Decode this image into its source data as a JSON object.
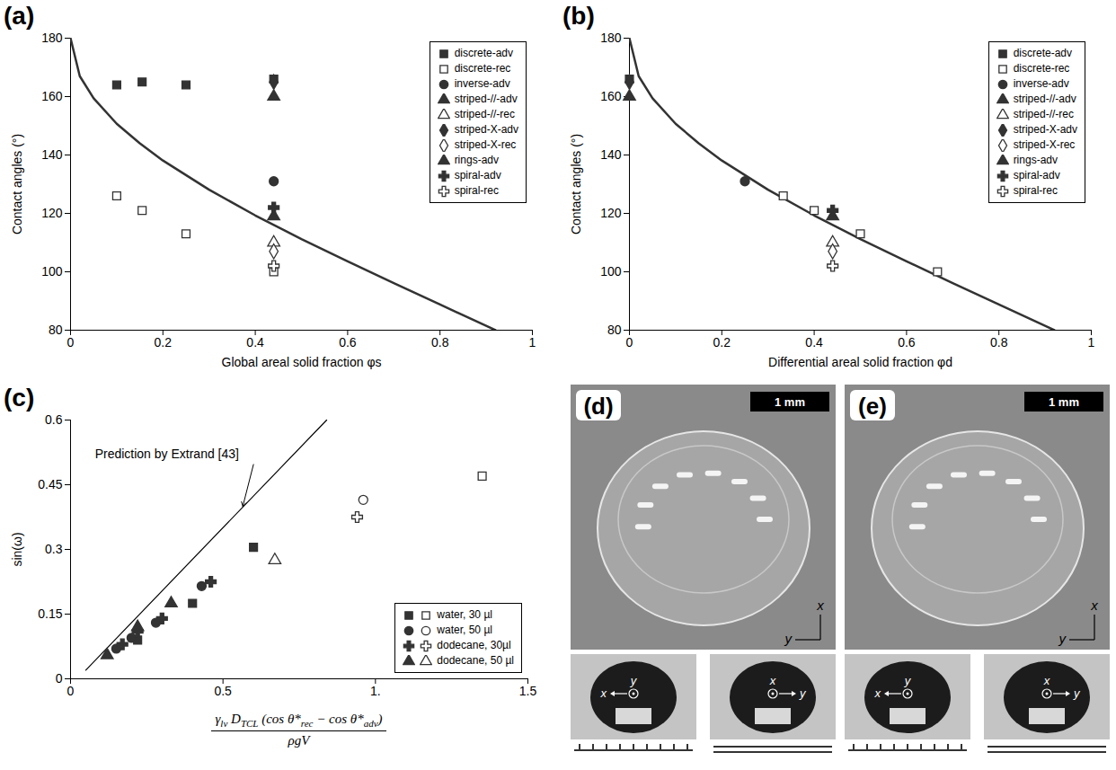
{
  "chart_data": [
    {
      "type": "scatter",
      "label": "(a)",
      "xlabel": "Global areal solid fraction φs",
      "ylabel": "Contact angles (°)",
      "xlim": [
        0,
        1
      ],
      "xticks": [
        0,
        0.2,
        0.4,
        0.6,
        0.8,
        1
      ],
      "ylim": [
        80,
        180
      ],
      "yticks": [
        80,
        100,
        120,
        140,
        160,
        180
      ],
      "legend": "top-right",
      "curve": {
        "color": "#333333",
        "x": [
          0,
          0.02,
          0.05,
          0.1,
          0.15,
          0.2,
          0.3,
          0.4,
          0.5,
          0.6,
          0.7,
          0.8,
          0.9,
          0.92
        ],
        "values": [
          180,
          167,
          159.4,
          150.7,
          144,
          138.1,
          128.1,
          119.3,
          111.2,
          103.6,
          96.1,
          88.8,
          81.5,
          80
        ]
      },
      "series": [
        {
          "name": "discrete-adv",
          "marker": "filled-square",
          "color": "#333333",
          "x": [
            0.1,
            0.155,
            0.25,
            0.44
          ],
          "values": [
            164,
            165,
            164,
            166
          ]
        },
        {
          "name": "discrete-rec",
          "marker": "open-square",
          "color": "#333333",
          "x": [
            0.1,
            0.155,
            0.25,
            0.44
          ],
          "values": [
            126,
            121,
            113,
            100
          ]
        },
        {
          "name": "inverse-adv",
          "marker": "filled-circle",
          "color": "#333333",
          "x": [
            0.44
          ],
          "values": [
            131
          ]
        },
        {
          "name": "striped-//-adv",
          "marker": "filled-triangle",
          "color": "#333333",
          "x": [
            0.44
          ],
          "values": [
            119
          ]
        },
        {
          "name": "striped-//-rec",
          "marker": "open-triangle",
          "color": "#333333",
          "x": [
            0.44
          ],
          "values": [
            110
          ]
        },
        {
          "name": "striped-X-adv",
          "marker": "filled-diamond",
          "color": "#333333",
          "x": [
            0.44
          ],
          "values": [
            165
          ]
        },
        {
          "name": "striped-X-rec",
          "marker": "open-diamond",
          "color": "#333333",
          "x": [
            0.44
          ],
          "values": [
            107
          ]
        },
        {
          "name": "rings-adv",
          "marker": "filled-triangle",
          "color": "#333333",
          "x": [
            0.44
          ],
          "values": [
            160
          ]
        },
        {
          "name": "spiral-adv",
          "marker": "filled-cross",
          "color": "#333333",
          "x": [
            0.44
          ],
          "values": [
            122
          ]
        },
        {
          "name": "spiral-rec",
          "marker": "open-cross",
          "color": "#333333",
          "x": [
            0.44
          ],
          "values": [
            102
          ]
        }
      ]
    },
    {
      "type": "scatter",
      "label": "(b)",
      "xlabel": "Differential areal solid fraction φd",
      "ylabel": "Contact angles (°)",
      "xlim": [
        0,
        1
      ],
      "xticks": [
        0,
        0.2,
        0.4,
        0.6,
        0.8,
        1
      ],
      "ylim": [
        80,
        180
      ],
      "yticks": [
        80,
        100,
        120,
        140,
        160,
        180
      ],
      "legend": "top-right",
      "curve": {
        "color": "#333333",
        "x": [
          0,
          0.02,
          0.05,
          0.1,
          0.15,
          0.2,
          0.3,
          0.4,
          0.5,
          0.6,
          0.7,
          0.8,
          0.9,
          0.92
        ],
        "values": [
          180,
          167,
          159.4,
          150.7,
          144,
          138.1,
          128.1,
          119.3,
          111.2,
          103.6,
          96.1,
          88.8,
          81.5,
          80
        ]
      },
      "series": [
        {
          "name": "discrete-adv",
          "marker": "filled-square",
          "color": "#333333",
          "x": [
            0
          ],
          "values": [
            166
          ]
        },
        {
          "name": "discrete-rec",
          "marker": "open-square",
          "color": "#333333",
          "x": [
            0.333,
            0.4,
            0.5,
            0.667
          ],
          "values": [
            126,
            121,
            113,
            100
          ]
        },
        {
          "name": "inverse-adv",
          "marker": "filled-circle",
          "color": "#333333",
          "x": [
            0.25
          ],
          "values": [
            131
          ]
        },
        {
          "name": "striped-//-adv",
          "marker": "filled-triangle",
          "color": "#333333",
          "x": [
            0.44
          ],
          "values": [
            119
          ]
        },
        {
          "name": "striped-//-rec",
          "marker": "open-triangle",
          "color": "#333333",
          "x": [
            0.44
          ],
          "values": [
            110
          ]
        },
        {
          "name": "striped-X-adv",
          "marker": "filled-diamond",
          "color": "#333333",
          "x": [
            0
          ],
          "values": [
            165
          ]
        },
        {
          "name": "striped-X-rec",
          "marker": "open-diamond",
          "color": "#333333",
          "x": [
            0.44
          ],
          "values": [
            107
          ]
        },
        {
          "name": "rings-adv",
          "marker": "filled-triangle",
          "color": "#333333",
          "x": [
            0
          ],
          "values": [
            160
          ]
        },
        {
          "name": "spiral-adv",
          "marker": "filled-cross",
          "color": "#333333",
          "x": [
            0.44
          ],
          "values": [
            121
          ]
        },
        {
          "name": "spiral-rec",
          "marker": "open-cross",
          "color": "#333333",
          "x": [
            0.44
          ],
          "values": [
            102
          ]
        }
      ]
    },
    {
      "type": "scatter",
      "label": "(c)",
      "xlabel": {
        "numerator": [
          [
            "γ",
            "lv"
          ],
          [
            " D",
            "TCL"
          ],
          [
            " (cos θ*",
            "rec"
          ],
          [
            " − cos θ*",
            "adv"
          ],
          [
            ")",
            ""
          ]
        ],
        "denominator": "ρgV"
      },
      "ylabel": "sin(ω)",
      "xlim": [
        0,
        1.5
      ],
      "xticks": [
        0,
        0.5,
        {
          "value": 1,
          "label": "1."
        },
        1.5
      ],
      "ylim": [
        0,
        0.6
      ],
      "yticks": [
        0,
        0.15,
        0.3,
        0.45,
        0.6
      ],
      "legend": "bottom-right",
      "reference": {
        "color": "#000000",
        "x": [
          0.05,
          0.84
        ],
        "values": [
          0.02,
          0.6
        ]
      },
      "annotation": {
        "text": "Prediction by Extrand [43]",
        "x": 0.08,
        "y": 0.52,
        "arrow_from": [
          0.6,
          0.497
        ],
        "arrow_to": [
          0.565,
          0.4
        ]
      },
      "series": [
        {
          "name": "water, 30 µl",
          "marker": "square",
          "color": "#333333",
          "x": [
            0.22,
            0.4,
            0.6
          ],
          "values": [
            0.09,
            0.175,
            0.305
          ],
          "open_x": [
            1.35
          ],
          "open_values": [
            0.47
          ]
        },
        {
          "name": "water, 50 µl",
          "marker": "circle",
          "color": "#333333",
          "x": [
            0.15,
            0.2,
            0.28,
            0.43
          ],
          "values": [
            0.07,
            0.095,
            0.13,
            0.215
          ],
          "open_x": [
            0.96
          ],
          "open_values": [
            0.415
          ]
        },
        {
          "name": "dodecane, 30µl",
          "marker": "cross",
          "color": "#333333",
          "x": [
            0.17,
            0.22,
            0.3,
            0.46
          ],
          "values": [
            0.08,
            0.11,
            0.14,
            0.225
          ],
          "open_x": [
            0.94
          ],
          "open_values": [
            0.375
          ]
        },
        {
          "name": "dodecane, 50 µl",
          "marker": "triangle",
          "color": "#333333",
          "x": [
            0.12,
            0.22,
            0.33
          ],
          "values": [
            0.055,
            0.12,
            0.175
          ],
          "open_x": [
            0.67
          ],
          "open_values": [
            0.275
          ]
        }
      ]
    }
  ],
  "images": [
    {
      "label": "(d)",
      "scale_bar": "1 mm",
      "axes": {
        "vertical": "x",
        "horizontal": "y"
      },
      "insets": [
        {
          "left": "x",
          "top": "y"
        },
        {
          "top": "x",
          "right": "y"
        }
      ]
    },
    {
      "label": "(e)",
      "scale_bar": "1 mm",
      "axes": {
        "vertical": "x",
        "horizontal": "y"
      },
      "insets": [
        {
          "left": "x",
          "top": "y"
        },
        {
          "top": "x",
          "right": "y"
        }
      ]
    }
  ]
}
